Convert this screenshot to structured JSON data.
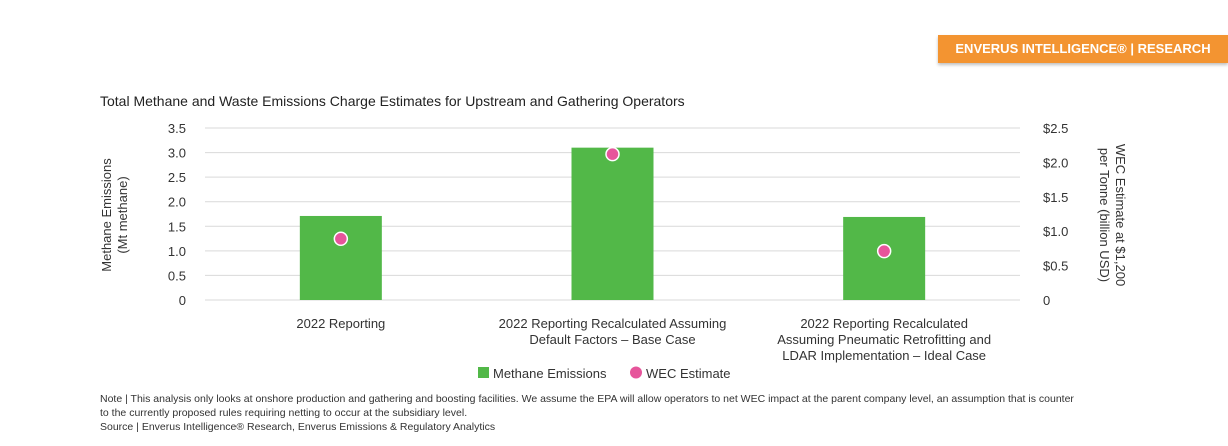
{
  "banner": {
    "text": "ENVERUS INTELLIGENCE® | RESEARCH",
    "color": "#f39431"
  },
  "chart_data": {
    "type": "bar",
    "title": "Total Methane and Waste Emissions Charge Estimates for Upstream and Gathering Operators",
    "categories": [
      [
        "2022 Reporting"
      ],
      [
        "2022 Reporting Recalculated Assuming",
        "Default Factors – Base Case"
      ],
      [
        "2022 Reporting Recalculated",
        "Assuming Pneumatic Retrofitting and",
        "LDAR Implementation – Ideal Case"
      ]
    ],
    "series": [
      {
        "name": "Methane Emissions",
        "type": "bar",
        "axis": "left",
        "color": "#52b848",
        "values": [
          1.71,
          3.1,
          1.69
        ]
      },
      {
        "name": "WEC Estimate",
        "type": "scatter",
        "axis": "right",
        "color": "#e6559b",
        "values": [
          0.89,
          2.12,
          0.71
        ]
      }
    ],
    "ylabel": [
      "Methane Emissions",
      "(Mt methane)"
    ],
    "ylabel_right": [
      "WEC Estimate at $1,200",
      "per Tonne (billion USD)"
    ],
    "ylim": [
      0,
      3.5
    ],
    "ylim_right": [
      0,
      2.5
    ],
    "yticks": [
      "0",
      "0.5",
      "1.0",
      "1.5",
      "2.0",
      "2.5",
      "3.0",
      "3.5"
    ],
    "yticks_right": [
      "0",
      "$0.5",
      "$1.0",
      "$1.5",
      "$2.0",
      "$2.5"
    ],
    "grid": true,
    "legend": "bottom"
  },
  "note": {
    "line1": "Note | This analysis only looks at onshore production and gathering and boosting facilities. We assume the EPA will allow operators to net WEC impact at the parent company level, an assumption that is counter to the currently proposed rules requiring netting to occur at the subsidiary level.",
    "line2": "Source | Enverus Intelligence® Research, Enverus Emissions & Regulatory Analytics"
  }
}
